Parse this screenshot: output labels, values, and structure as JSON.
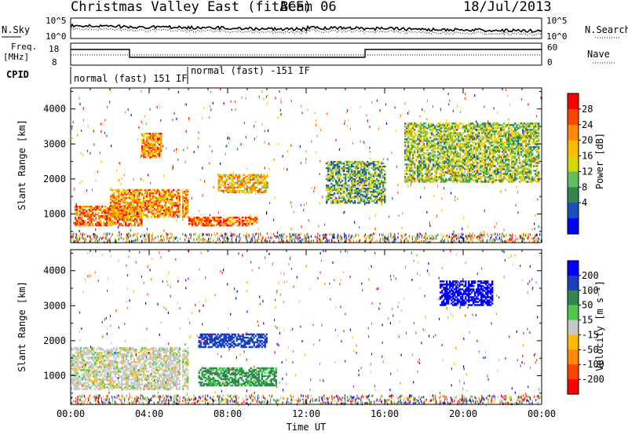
{
  "header": {
    "title": "Christmas Valley East (fitACF)",
    "beam": "Beam 06",
    "date": "18/Jul/2013"
  },
  "noise_panel": {
    "left_label": "N.Sky",
    "right_label": "N.Search",
    "y_ticks": [
      "10^5",
      "10^0"
    ]
  },
  "freq_panel": {
    "left_label_1": "Freq.",
    "left_label_2": "[MHz]",
    "right_label": "Nave",
    "left_ticks": [
      "18",
      "8"
    ],
    "right_ticks": [
      "60",
      "0"
    ]
  },
  "cpid": {
    "label": "CPID",
    "segments": [
      {
        "name": "normal (fast) 151 IF",
        "start_hr": 0.0,
        "end_hr": 6.0
      },
      {
        "name": "normal (fast) -151 IF",
        "start_hr": 6.0,
        "end_hr": 24.0
      }
    ]
  },
  "x_axis": {
    "label": "Time UT",
    "ticks": [
      "00:00",
      "04:00",
      "08:00",
      "12:00",
      "16:00",
      "20:00",
      "00:00"
    ]
  },
  "power_colorbar": {
    "label": "Power [dB]",
    "ticks": [
      "28",
      "24",
      "20",
      "16",
      "12",
      "8",
      "4"
    ],
    "colors": [
      "#ff0000",
      "#ff4400",
      "#ff8800",
      "#ffbb00",
      "#d8d800",
      "#60c060",
      "#308850",
      "#1a4fbf",
      "#0000ff"
    ]
  },
  "velocity_colorbar": {
    "label": "Velocity [m s⁻¹]",
    "ticks": [
      "200",
      "100",
      "50",
      "15",
      "-15",
      "-50",
      "-100",
      "-200"
    ],
    "colors": [
      "#0000ff",
      "#1a3fbf",
      "#308850",
      "#4fc84f",
      "#c8c8c8",
      "#ffbb00",
      "#ff8800",
      "#ff4400",
      "#ff0000"
    ]
  },
  "chart_data": [
    {
      "type": "heatmap",
      "title": "Power",
      "ylabel": "Slant Range [km]",
      "xlabel": "Time UT",
      "xlim": [
        0,
        24
      ],
      "ylim": [
        180,
        4600
      ],
      "y_ticks": [
        1000,
        2000,
        3000,
        4000
      ],
      "cbar_label": "Power [dB]",
      "cbar_range": [
        0,
        32
      ],
      "features": [
        {
          "t_start": 0.2,
          "t_end": 3.6,
          "r_start": 650,
          "r_end": 1200,
          "dB": 24
        },
        {
          "t_start": 2.0,
          "t_end": 6.0,
          "r_start": 900,
          "r_end": 1700,
          "dB": 22
        },
        {
          "t_start": 3.6,
          "t_end": 4.6,
          "r_start": 2600,
          "r_end": 3300,
          "dB": 22
        },
        {
          "t_start": 6.0,
          "t_end": 9.5,
          "r_start": 650,
          "r_end": 900,
          "dB": 26
        },
        {
          "t_start": 7.5,
          "t_end": 10.0,
          "r_start": 1600,
          "r_end": 2100,
          "dB": 20
        },
        {
          "t_start": 13.0,
          "t_end": 16.0,
          "r_start": 1300,
          "r_end": 2500,
          "dB": 12
        },
        {
          "t_start": 17.0,
          "t_end": 23.8,
          "r_start": 1900,
          "r_end": 3600,
          "dB": 14
        }
      ]
    },
    {
      "type": "heatmap",
      "title": "Velocity",
      "ylabel": "Slant Range [km]",
      "xlabel": "Time UT",
      "xlim": [
        0,
        24
      ],
      "ylim": [
        180,
        4600
      ],
      "y_ticks": [
        1000,
        2000,
        3000,
        4000
      ],
      "cbar_label": "Velocity [m s-1]",
      "cbar_range": [
        -250,
        250
      ],
      "features": [
        {
          "t_start": 0.0,
          "t_end": 6.0,
          "r_start": 600,
          "r_end": 1800,
          "v": 0
        },
        {
          "t_start": 6.5,
          "t_end": 10.0,
          "r_start": 1800,
          "r_end": 2200,
          "v": 130
        },
        {
          "t_start": 6.5,
          "t_end": 10.5,
          "r_start": 700,
          "r_end": 1200,
          "v": 40
        },
        {
          "t_start": 18.8,
          "t_end": 21.5,
          "r_start": 3000,
          "r_end": 3700,
          "v": 220
        }
      ]
    }
  ]
}
